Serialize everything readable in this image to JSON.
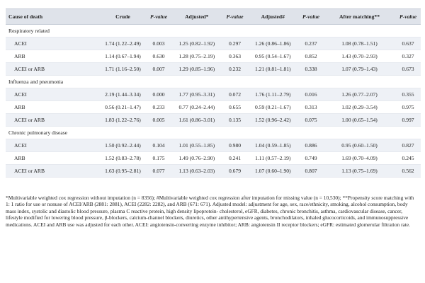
{
  "headers": [
    "Cause of death",
    "Crude",
    "P-value",
    "Adjusted*",
    "P-value",
    "Adjusted#",
    "P-value",
    "After matching**",
    "P-value"
  ],
  "sections": [
    {
      "title": "Respiratory related",
      "rows": [
        {
          "label": "ACEI",
          "cells": [
            "1.74 (1.22–2.49)",
            "0.003",
            "1.25 (0.82–1.92)",
            "0.297",
            "1.26 (0.86–1.86)",
            "0.237",
            "1.08 (0.78–1.51)",
            "0.637"
          ]
        },
        {
          "label": "ARB",
          "cells": [
            "1.14 (0.67–1.94)",
            "0.630",
            "1.28 (0.75–2.19)",
            "0.363",
            "0.95 (0.54–1.67)",
            "0.852",
            "1.43 (0.70–2.93)",
            "0.327"
          ]
        },
        {
          "label": "ACEI or ARB",
          "cells": [
            "1.71 (1.16–2.50)",
            "0.007",
            "1.29 (0.85–1.96)",
            "0.232",
            "1.21 (0.81–1.81)",
            "0.338",
            "1.07 (0.79–1.43)",
            "0.673"
          ]
        }
      ]
    },
    {
      "title": "Influenza and pneumonia",
      "rows": [
        {
          "label": "ACEI",
          "cells": [
            "2.19 (1.44–3.34)",
            "0.000",
            "1.77 (0.95–3.31)",
            "0.072",
            "1.76 (1.11–2.79)",
            "0.016",
            "1.26 (0.77–2.07)",
            "0.355"
          ]
        },
        {
          "label": "ARB",
          "cells": [
            "0.56 (0.21–1.47)",
            "0.233",
            "0.77 (0.24–2.44)",
            "0.655",
            "0.59 (0.21–1.67)",
            "0.313",
            "1.02 (0.29–3.54)",
            "0.975"
          ]
        },
        {
          "label": "ACEI or ARB",
          "cells": [
            "1.83 (1.22–2.76)",
            "0.005",
            "1.61 (0.86–3.01)",
            "0.135",
            "1.52 (0.96–2.42)",
            "0.075",
            "1.00 (0.65–1.54)",
            "0.997"
          ]
        }
      ]
    },
    {
      "title": "Chronic pulmonary disease",
      "rows": [
        {
          "label": "ACEI",
          "cells": [
            "1.50 (0.92–2.44)",
            "0.104",
            "1.01 (0.55–1.85)",
            "0.980",
            "1.04 (0.59–1.85)",
            "0.886",
            "0.95 (0.60–1.50)",
            "0.827"
          ]
        },
        {
          "label": "ARB",
          "cells": [
            "1.52 (0.83–2.78)",
            "0.175",
            "1.49 (0.76–2.90)",
            "0.241",
            "1.11 (0.57–2.19)",
            "0.749",
            "1.69 (0.70–4.09)",
            "0.245"
          ]
        },
        {
          "label": "ACEI or ARB",
          "cells": [
            "1.63 (0.95–2.81)",
            "0.077",
            "1.13 (0.63–2.03)",
            "0.679",
            "1.07 (0.60–1.90)",
            "0.807",
            "1.13 (0.75–1.69)",
            "0.562"
          ]
        }
      ]
    }
  ],
  "footnotes": [
    "*Multivariable weighted cox regression without imputation (n = 8356); #Multivariable weighted cox regression after imputation for missing value (n = 10,530); **Propensity score matching with 1: 1 ratio for use or nonuse of ACEI/ARB (2881: 2881), ACEI (2282: 2282), and ARB (671: 671). Adjusted model: adjustment for age, sex, race/ethnicity, smoking, alcohol consumption, body mass index, systolic and diastolic blood pressure, plasma C reactive protein, high density lipoprotein- cholesterol, eGFR, diabetes, chronic bronchitis, asthma, cardiovascular disease, cancer, lifestyle modified for lowering blood pressure, β-blockers, calcium-channel blockers, diuretics, other antihypertensive agents, bronchodilators, inhaled glucocorticoids, and immunosuppressive medications. ACEI and ARB use was adjusted for each other. ACEI: angiotensin-converting enzyme inhibitor; ARB: angiotensin II receptor blockers; eGFR: estimated glomerular filtration rate."
  ]
}
